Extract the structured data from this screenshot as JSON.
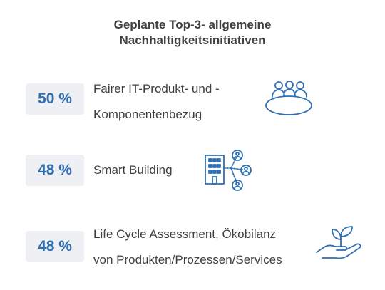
{
  "chart_data": {
    "type": "table",
    "title_lines": [
      "Geplante Top-3- allgemeine",
      "Nachhaltigkeitsinitiativen"
    ],
    "unit": "%",
    "items": [
      {
        "value": 50,
        "value_label": "50 %",
        "label_lines": [
          "Fairer IT-Produkt- und -",
          "Komponentenbezug"
        ],
        "icon": "meeting-table-icon"
      },
      {
        "value": 48,
        "value_label": "48 %",
        "label_lines": [
          "Smart Building"
        ],
        "icon": "smart-building-icon"
      },
      {
        "value": 48,
        "value_label": "48 %",
        "label_lines": [
          "Life Cycle Assessment, Ökobilanz",
          "von Produkten/Prozessen/Services"
        ],
        "icon": "plant-hand-icon"
      }
    ]
  },
  "colors": {
    "accent": "#2f6fb2",
    "text": "#404040",
    "badge_bg": "#eef0f3"
  }
}
